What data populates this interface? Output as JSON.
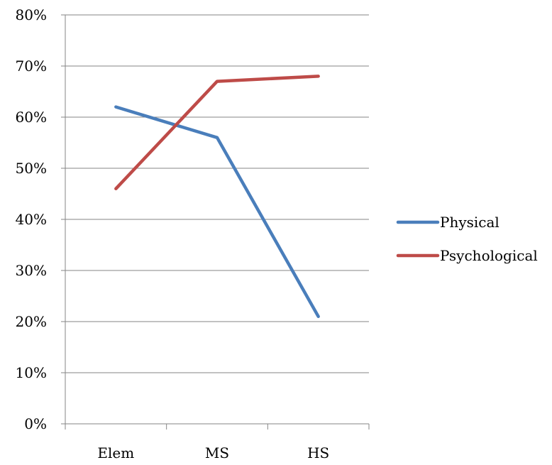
{
  "chart_data": {
    "type": "line",
    "categories": [
      "Elem",
      "MS",
      "HS"
    ],
    "series": [
      {
        "name": "Physical",
        "values": [
          0.62,
          0.56,
          0.21
        ],
        "color": "#4a7ebb"
      },
      {
        "name": "Psychological",
        "values": [
          0.46,
          0.67,
          0.68
        ],
        "color": "#be4b48"
      }
    ],
    "ylim": [
      0,
      0.8
    ],
    "yticks": [
      0,
      0.1,
      0.2,
      0.3,
      0.4,
      0.5,
      0.6,
      0.7,
      0.8
    ],
    "ytick_labels": [
      "0%",
      "10%",
      "20%",
      "30%",
      "40%",
      "50%",
      "60%",
      "70%",
      "80%"
    ],
    "grid": true,
    "legend": "right",
    "gridline_color": "#868686"
  }
}
